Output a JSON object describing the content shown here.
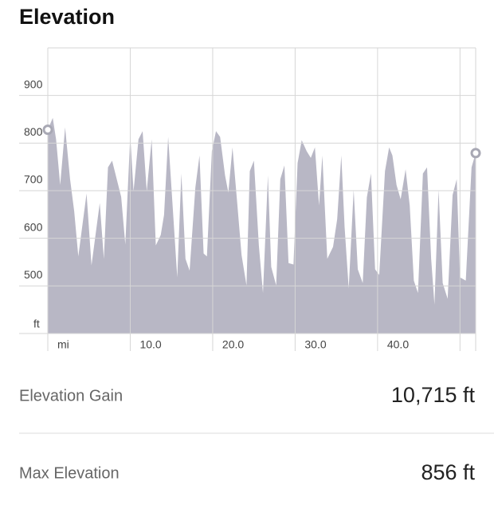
{
  "chart_data": {
    "type": "area",
    "title": "Elevation",
    "x": [
      0,
      0.6,
      1.0,
      1.5,
      2.1,
      2.7,
      3.2,
      3.7,
      4.7,
      5.3,
      6.3,
      6.8,
      7.3,
      7.8,
      8.9,
      9.4,
      10.0,
      10.4,
      11.0,
      11.5,
      12.0,
      12.6,
      13.1,
      13.7,
      14.1,
      14.6,
      15.7,
      16.2,
      16.7,
      17.2,
      17.9,
      18.4,
      18.9,
      19.3,
      19.9,
      20.4,
      20.9,
      21.5,
      21.9,
      22.4,
      23.0,
      23.5,
      24.1,
      24.5,
      25.0,
      25.6,
      26.1,
      26.7,
      27.1,
      27.7,
      28.2,
      28.7,
      29.2,
      29.8,
      30.3,
      30.8,
      31.4,
      31.9,
      32.4,
      32.9,
      33.3,
      33.9,
      34.6,
      35.1,
      35.6,
      36.0,
      36.5,
      37.1,
      37.6,
      38.2,
      38.7,
      39.2,
      39.7,
      40.2,
      40.9,
      41.4,
      41.8,
      42.3,
      42.8,
      43.4,
      43.9,
      44.4,
      44.9,
      45.5,
      46.0,
      46.5,
      46.9,
      47.4,
      47.9,
      48.5,
      49.1,
      49.6,
      50.0,
      50.7,
      51.4,
      51.9
    ],
    "values": [
      828,
      853,
      808,
      712,
      833,
      724,
      657,
      562,
      694,
      543,
      674,
      557,
      749,
      763,
      687,
      587,
      816,
      699,
      808,
      825,
      699,
      808,
      585,
      607,
      649,
      813,
      518,
      736,
      557,
      532,
      707,
      774,
      568,
      562,
      783,
      825,
      813,
      732,
      696,
      791,
      669,
      565,
      501,
      741,
      763,
      585,
      485,
      732,
      540,
      501,
      724,
      753,
      548,
      545,
      758,
      806,
      783,
      769,
      791,
      669,
      774,
      557,
      582,
      640,
      774,
      624,
      495,
      702,
      535,
      506,
      686,
      736,
      535,
      523,
      741,
      791,
      774,
      712,
      682,
      745,
      669,
      511,
      485,
      736,
      749,
      557,
      461,
      702,
      506,
      473,
      691,
      724,
      518,
      511,
      749,
      779
    ],
    "color": "#b8b7c5",
    "xlim": [
      0,
      51.9
    ],
    "ylim": [
      400,
      1000
    ],
    "xticks": [
      {
        "value": 0,
        "label": "mi"
      },
      {
        "value": 10,
        "label": "10.0"
      },
      {
        "value": 20,
        "label": "20.0"
      },
      {
        "value": 30,
        "label": "30.0"
      },
      {
        "value": 40,
        "label": "40.0"
      },
      {
        "value": 50,
        "label": null
      }
    ],
    "yticks": [
      500,
      600,
      700,
      800,
      900
    ],
    "ylabel": "ft",
    "grid": true
  },
  "stats": [
    {
      "label": "Elevation Gain",
      "value": "10,715 ft"
    },
    {
      "label": "Max Elevation",
      "value": "856 ft"
    }
  ]
}
